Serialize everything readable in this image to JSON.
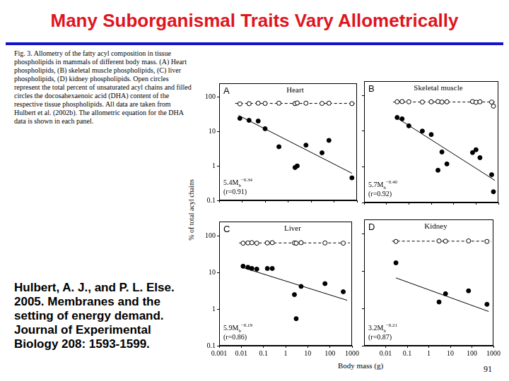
{
  "slide": {
    "title": "Many Suborganismal Traits Vary Allometrically",
    "caption": "Fig. 3. Allometry of the fatty acyl composition in tissue phospholipids in mammals of different body mass. (A) Heart phospholipids, (B) skeletal muscle phospholipids, (C) liver phospholipids, (D) kidney phospholipids. Open circles represent the total percent of unsaturated acyl chains and filled circles the docosahexaenoic acid (DHA) content of the respective tissue phospholipids. All data are taken from Hulbert et al. (2002b). The allometric equation for the DHA data is shown in each panel.",
    "citation": [
      "Hulbert, A. J., and P. L. Else.",
      "2005. Membranes and the",
      "setting of energy demand.",
      "Journal of Experimental",
      "Biology 208: 1593-1599."
    ],
    "ylabel": "% of total acyl chains",
    "xlabel": "Body mass (g)",
    "page_number": "91"
  },
  "chart_data": [
    {
      "type": "scatter",
      "panel": "A",
      "title": "Heart",
      "log": true,
      "grid": false,
      "tick_labels": "y",
      "xlim": [
        0.001,
        1000
      ],
      "xticks": [
        0.001,
        0.01,
        0.1,
        1,
        10,
        100,
        1000
      ],
      "ylim": [
        0.1,
        250
      ],
      "yticks": [
        0.1,
        1,
        10,
        100
      ],
      "series": [
        {
          "marker": "open_circle",
          "color": "#000000",
          "x": [
            0.008,
            0.02,
            0.05,
            0.1,
            0.4,
            2,
            2.5,
            6,
            30,
            60,
            600
          ],
          "values": [
            63,
            64,
            66,
            65,
            66,
            64,
            67,
            66,
            65,
            66,
            64
          ]
        },
        {
          "marker": "filled_circle",
          "color": "#000000",
          "x": [
            0.008,
            0.02,
            0.05,
            0.1,
            0.4,
            2,
            2.5,
            6,
            30,
            60,
            600
          ],
          "values": [
            24,
            21,
            20,
            12,
            3.6,
            0.9,
            1.0,
            4,
            2.4,
            5.5,
            0.45
          ]
        },
        {
          "type": "line",
          "line_style": "dashed",
          "color": "#000000",
          "x": [
            0.005,
            800
          ],
          "values": [
            65,
            65
          ]
        }
      ],
      "fit": {
        "coefficient": 5.4,
        "exponent": -0.34,
        "x_from": 0.007,
        "x_to": 600
      },
      "equation": {
        "text": "5.4M",
        "sub": "b",
        "sup": "−0.34"
      },
      "r_label": "(r=0.91)"
    },
    {
      "type": "scatter",
      "panel": "B",
      "title": "Skeletal muscle",
      "log": true,
      "grid": false,
      "tick_labels": false,
      "xlim": [
        0.001,
        1000
      ],
      "xticks": [
        0.001,
        0.01,
        0.1,
        1,
        10,
        100,
        1000
      ],
      "ylim": [
        0.1,
        250
      ],
      "yticks": [
        0.1,
        1,
        10,
        100
      ],
      "series": [
        {
          "marker": "open_circle",
          "color": "#000000",
          "x": [
            0.03,
            0.05,
            0.1,
            0.4,
            1,
            2,
            3,
            5,
            70,
            100,
            150,
            500,
            600
          ],
          "values": [
            66,
            67,
            66,
            65,
            66,
            67,
            65,
            66,
            67,
            64,
            66,
            65,
            50
          ]
        },
        {
          "marker": "filled_circle",
          "color": "#000000",
          "x": [
            0.03,
            0.05,
            0.1,
            0.4,
            1,
            2,
            3,
            5,
            70,
            100,
            150,
            500,
            600
          ],
          "values": [
            24,
            22,
            14,
            10,
            8,
            0.8,
            2.6,
            1.2,
            2.5,
            3,
            1.8,
            0.6,
            0.2
          ]
        },
        {
          "type": "line",
          "line_style": "dashed",
          "color": "#000000",
          "x": [
            0.02,
            800
          ],
          "values": [
            65,
            65
          ]
        }
      ],
      "fit": {
        "coefficient": 5.7,
        "exponent": -0.4,
        "x_from": 0.025,
        "x_to": 700
      },
      "equation": {
        "text": "5.7M",
        "sub": "b",
        "sup": "−0.40"
      },
      "r_label": "(r=0.92)"
    },
    {
      "type": "scatter",
      "panel": "C",
      "title": "Liver",
      "log": true,
      "grid": false,
      "xlim": [
        0.001,
        1000
      ],
      "xticks": [
        0.001,
        0.01,
        0.1,
        1,
        10,
        100,
        1000
      ],
      "ylim": [
        0.1,
        250
      ],
      "yticks": [
        0.1,
        1,
        10,
        100
      ],
      "series": [
        {
          "marker": "open_circle",
          "color": "#000000",
          "x": [
            0.012,
            0.02,
            0.03,
            0.05,
            0.15,
            0.25,
            2.5,
            3,
            5,
            60,
            400
          ],
          "values": [
            64,
            65,
            66,
            64,
            65,
            66,
            65,
            64,
            66,
            65,
            64
          ]
        },
        {
          "marker": "filled_circle",
          "color": "#000000",
          "x": [
            0.012,
            0.02,
            0.03,
            0.05,
            0.15,
            0.25,
            2.5,
            3,
            5,
            60,
            400
          ],
          "values": [
            15,
            14,
            13,
            12.5,
            13,
            13,
            2.5,
            0.55,
            4.2,
            5,
            3
          ]
        },
        {
          "type": "line",
          "line_style": "dashed",
          "color": "#000000",
          "x": [
            0.008,
            800
          ],
          "values": [
            65,
            65
          ]
        }
      ],
      "fit": {
        "coefficient": 5.9,
        "exponent": -0.19,
        "x_from": 0.01,
        "x_to": 600
      },
      "equation": {
        "text": "5.9M",
        "sub": "b",
        "sup": "−0.19"
      },
      "r_label": "(r=0.86)"
    },
    {
      "type": "scatter",
      "panel": "D",
      "title": "Kidney",
      "log": true,
      "grid": false,
      "tick_labels": "x",
      "xlim": [
        0.001,
        1000
      ],
      "xticks": [
        0.01,
        0.1,
        1,
        10,
        100,
        1000
      ],
      "ylim": [
        0.1,
        250
      ],
      "yticks": [
        0.1,
        1,
        10,
        100
      ],
      "series": [
        {
          "marker": "open_circle",
          "color": "#000000",
          "x": [
            0.03,
            3,
            6,
            70,
            500
          ],
          "values": [
            64,
            66,
            65,
            66,
            64
          ]
        },
        {
          "marker": "filled_circle",
          "color": "#000000",
          "x": [
            0.03,
            3,
            6,
            70,
            500
          ],
          "values": [
            17,
            1.5,
            2.5,
            3,
            1.3
          ]
        },
        {
          "type": "line",
          "line_style": "dashed",
          "color": "#000000",
          "x": [
            0.02,
            800
          ],
          "values": [
            65,
            65
          ]
        }
      ],
      "fit": {
        "coefficient": 3.2,
        "exponent": -0.21,
        "x_from": 0.03,
        "x_to": 600
      },
      "equation": {
        "text": "3.2M",
        "sub": "b",
        "sup": "−0.21"
      },
      "r_label": "(r=0.87)"
    }
  ]
}
